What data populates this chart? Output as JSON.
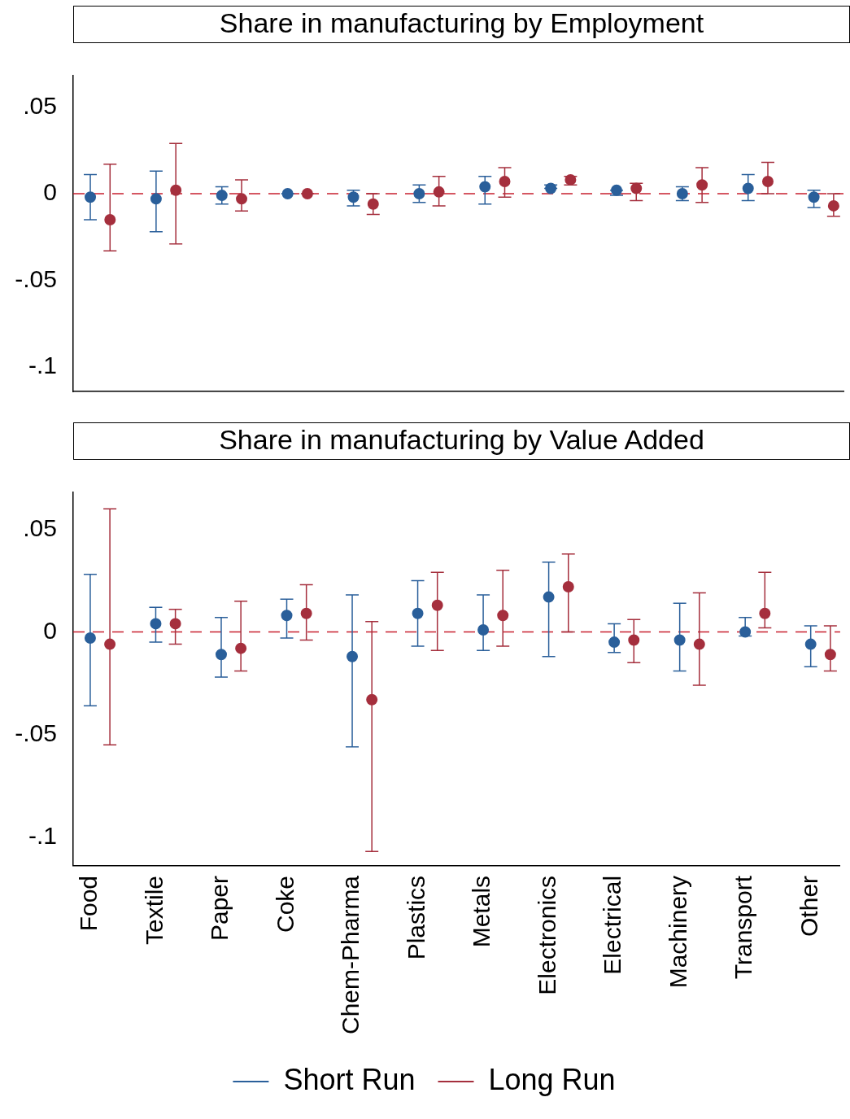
{
  "chart_data": [
    {
      "type": "scatter",
      "title": "Share in manufacturing by Employment",
      "categories": [
        null,
        null,
        null,
        null,
        null,
        null,
        null,
        null,
        null,
        null,
        null,
        null
      ],
      "series": [
        {
          "color": "#2a5f9a",
          "values": [
            -0.002,
            -0.003,
            -0.001,
            0.0,
            -0.002,
            0.0,
            0.004,
            0.003,
            0.002,
            0.0,
            0.003,
            -0.002
          ],
          "errors": [
            [
              -0.015,
              0.011
            ],
            [
              -0.022,
              0.013
            ],
            [
              -0.006,
              0.004
            ],
            [
              0.0,
              0.0
            ],
            [
              -0.007,
              0.002
            ],
            [
              -0.005,
              0.005
            ],
            [
              -0.006,
              0.01
            ],
            [
              0.003,
              0.005
            ],
            [
              -0.001,
              0.002
            ],
            [
              -0.004,
              0.004
            ],
            [
              -0.004,
              0.011
            ],
            [
              -0.008,
              0.002
            ]
          ]
        },
        {
          "color": "#a52f3d",
          "values": [
            -0.015,
            0.002,
            -0.003,
            0.0,
            -0.006,
            0.001,
            0.007,
            0.008,
            0.003,
            0.005,
            0.007,
            -0.007
          ],
          "errors": [
            [
              -0.033,
              0.017
            ],
            [
              -0.029,
              0.029
            ],
            [
              -0.01,
              0.008
            ],
            [
              0.0,
              0.0
            ],
            [
              -0.012,
              0.0
            ],
            [
              -0.007,
              0.01
            ],
            [
              -0.002,
              0.015
            ],
            [
              0.005,
              0.01
            ],
            [
              -0.004,
              0.006
            ],
            [
              -0.005,
              0.015
            ],
            [
              0.0,
              0.018
            ],
            [
              -0.013,
              0.0
            ]
          ]
        }
      ],
      "ylim": [
        -0.114,
        0.068
      ],
      "yticks": [
        {
          "value": 0.05,
          "label": ".05"
        },
        0,
        {
          "value": -0.05,
          "label": "-.05"
        },
        {
          "value": -0.1,
          "label": "-.1"
        }
      ],
      "ref_lines": [
        {
          "axis": "y",
          "value": 0,
          "color": "#c8202f",
          "line_style": "dashed"
        }
      ],
      "grid": false,
      "legend": false,
      "tick_labels": "y",
      "marker": "circle"
    },
    {
      "type": "scatter",
      "title": "Share in manufacturing by Value Added",
      "categories": [
        "Food",
        "Textile",
        "Paper",
        "Coke",
        "Chem-Pharma",
        "Plastics",
        "Metals",
        "Electronics",
        "Electrical",
        "Machinery",
        "Transport",
        "Other"
      ],
      "series": [
        {
          "name": "Short Run",
          "color": "#2a5f9a",
          "values": [
            -0.003,
            0.004,
            -0.011,
            0.008,
            -0.012,
            0.009,
            0.001,
            0.017,
            -0.005,
            -0.004,
            0.0,
            -0.006
          ],
          "errors": [
            [
              -0.036,
              0.028
            ],
            [
              -0.005,
              0.012
            ],
            [
              -0.022,
              0.007
            ],
            [
              -0.003,
              0.016
            ],
            [
              -0.056,
              0.018
            ],
            [
              -0.007,
              0.025
            ],
            [
              -0.009,
              0.018
            ],
            [
              -0.012,
              0.034
            ],
            [
              -0.01,
              0.004
            ],
            [
              -0.019,
              0.014
            ],
            [
              -0.002,
              0.007
            ],
            [
              -0.017,
              0.003
            ]
          ]
        },
        {
          "name": "Long Run",
          "color": "#a52f3d",
          "values": [
            -0.006,
            0.004,
            -0.008,
            0.009,
            -0.033,
            0.013,
            0.008,
            0.022,
            -0.004,
            -0.006,
            0.009,
            -0.011
          ],
          "errors": [
            [
              -0.055,
              0.06
            ],
            [
              -0.006,
              0.011
            ],
            [
              -0.019,
              0.015
            ],
            [
              -0.004,
              0.023
            ],
            [
              -0.107,
              0.005
            ],
            [
              -0.009,
              0.029
            ],
            [
              -0.007,
              0.03
            ],
            [
              0.0,
              0.038
            ],
            [
              -0.015,
              0.006
            ],
            [
              -0.026,
              0.019
            ],
            [
              0.002,
              0.029
            ],
            [
              -0.019,
              0.003
            ]
          ]
        }
      ],
      "ylim": [
        -0.114,
        0.068
      ],
      "yticks": [
        {
          "value": 0.05,
          "label": ".05"
        },
        0,
        {
          "value": -0.05,
          "label": "-.05"
        },
        {
          "value": -0.1,
          "label": "-.1"
        }
      ],
      "ref_lines": [
        {
          "axis": "y",
          "value": 0,
          "color": "#c8202f",
          "line_style": "dashed"
        }
      ],
      "grid": false,
      "legend": "bottom",
      "marker": "circle"
    }
  ]
}
